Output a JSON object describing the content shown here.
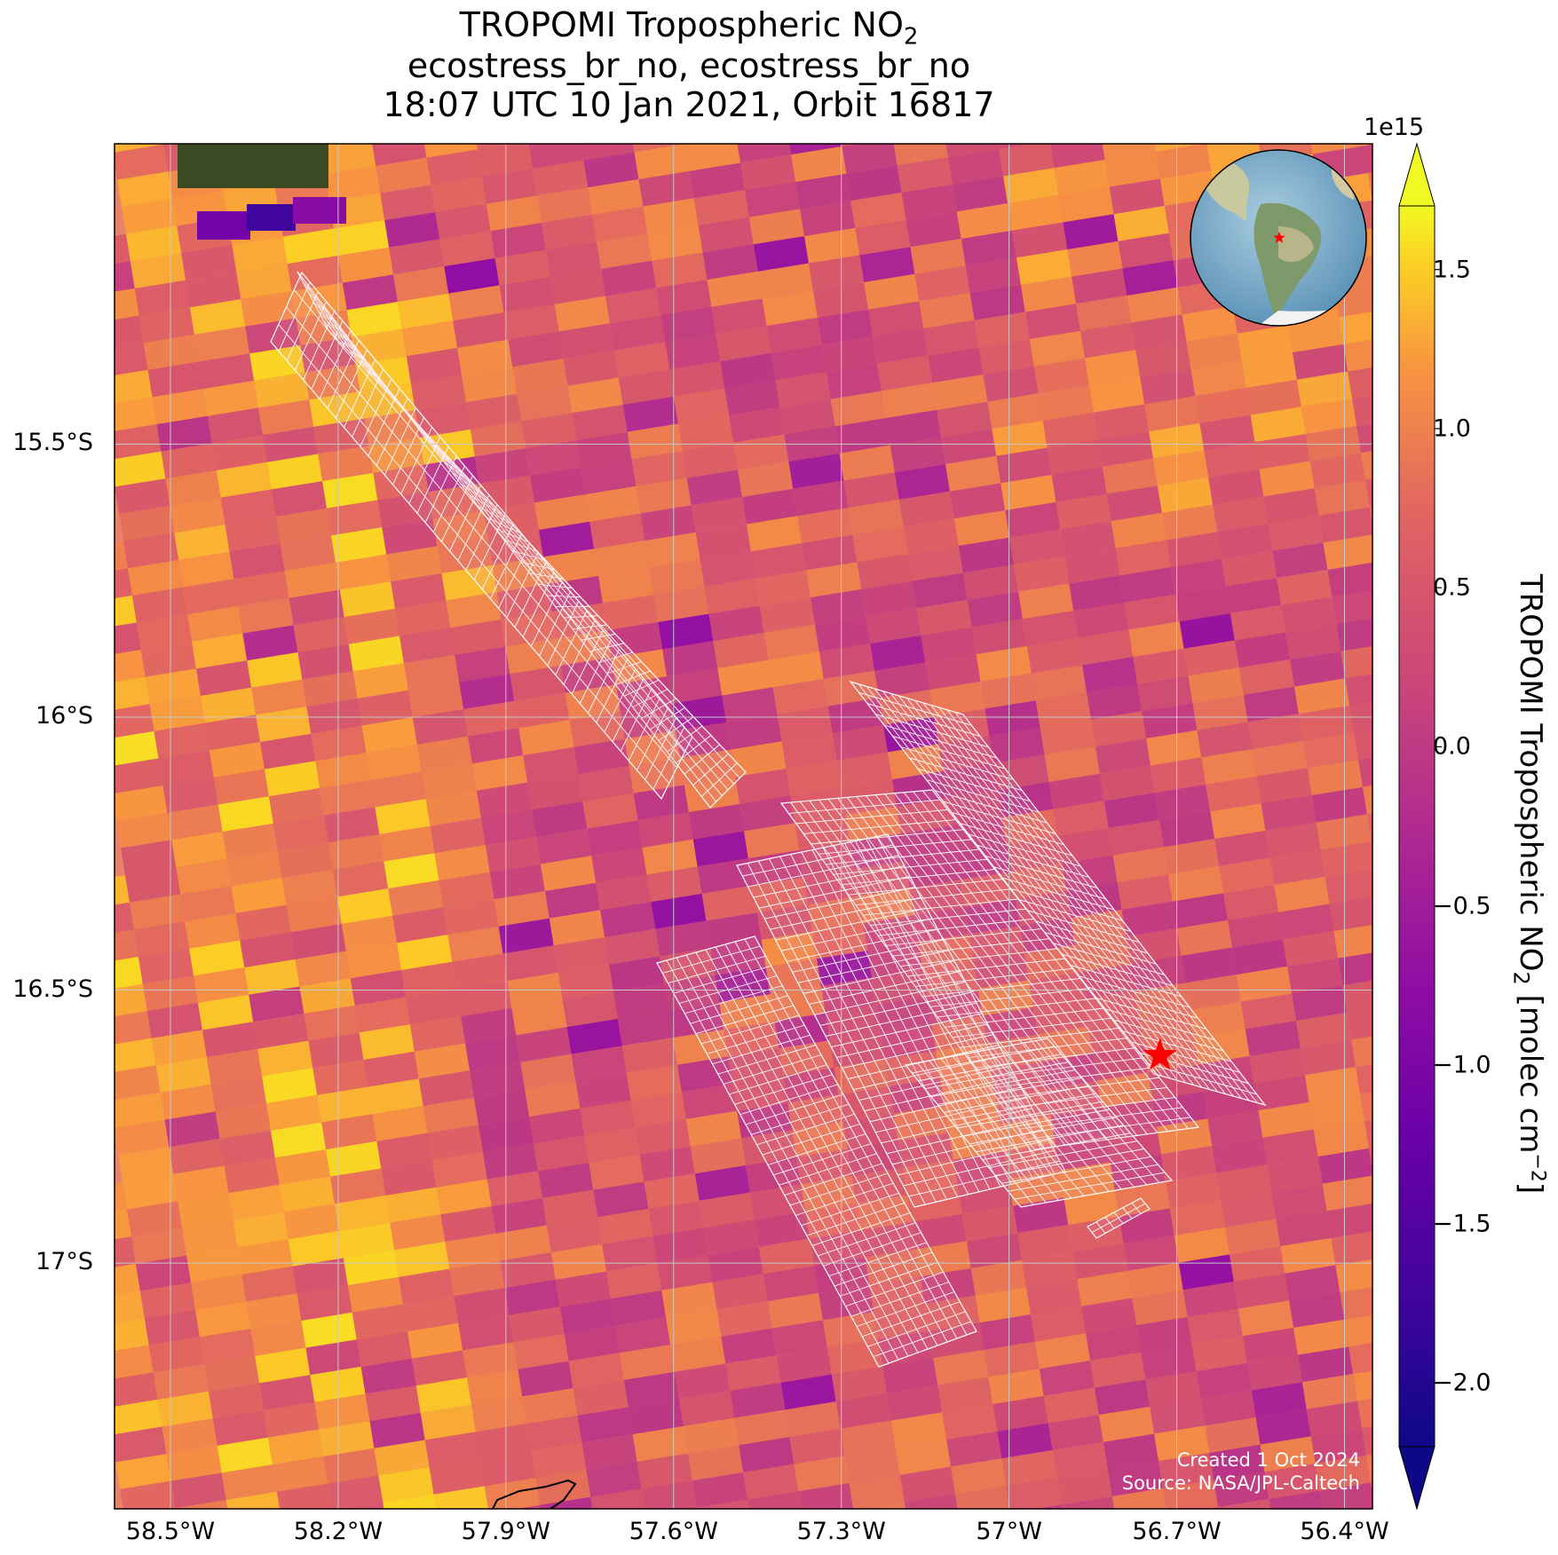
{
  "title": {
    "line1_main": "TROPOMI Tropospheric NO",
    "line1_sub": "2",
    "line2": "ecostress_br_no, ecostress_br_no",
    "line3": "18:07 UTC 10 Jan 2021, Orbit 16817"
  },
  "map": {
    "projection": "PlateCarree",
    "lon_range": [
      -58.6,
      -56.35
    ],
    "lat_range": [
      -17.45,
      -14.95
    ],
    "gridlines": true,
    "lon_ticks": [
      "58.5°W",
      "58.2°W",
      "57.9°W",
      "57.6°W",
      "57.3°W",
      "57°W",
      "56.7°W",
      "56.4°W"
    ],
    "lon_tick_values": [
      -58.5,
      -58.2,
      -57.9,
      -57.6,
      -57.3,
      -57.0,
      -56.7,
      -56.4
    ],
    "lat_ticks": [
      "15.5°S",
      "16°S",
      "16.5°S",
      "17°S"
    ],
    "lat_tick_values": [
      -15.5,
      -16.0,
      -16.5,
      -17.0
    ],
    "target_marker": {
      "lon": -56.73,
      "lat": -16.62,
      "symbol": "red-star"
    },
    "overlay": "ECOSTRESS granule footprint grid (white outline)",
    "basemap": "satellite imagery (visible top-left)",
    "colormap": "plasma"
  },
  "inset_globe": {
    "center_region": "South America",
    "marker": "red-star"
  },
  "colorbar": {
    "label_main": "TROPOMI Tropospheric NO",
    "label_sub": "2",
    "label_unit": " [molec cm",
    "label_sup": "−2",
    "label_close": "]",
    "multiplier": "1e15",
    "range": [
      -2.2,
      1.7
    ],
    "extend": "both",
    "ticks": [
      "1.5",
      "1.0",
      "0.5",
      "0.0",
      "−0.5",
      "−1.0",
      "−1.5",
      "−2.0"
    ],
    "tick_values": [
      1.5,
      1.0,
      0.5,
      0.0,
      -0.5,
      -1.0,
      -1.5,
      -2.0
    ]
  },
  "credit": {
    "line1": "Created 1 Oct 2024",
    "line2": "Source: NASA/JPL-Caltech"
  }
}
